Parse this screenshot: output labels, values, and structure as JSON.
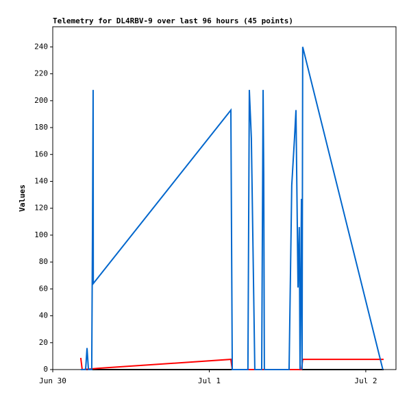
{
  "chart_data": {
    "type": "line",
    "title": "Telemetry for DL4RBV-9 over last 96 hours (45 points)",
    "y_label": "Values",
    "xlim": [
      0,
      2.193
    ],
    "ylim": [
      0,
      255
    ],
    "xticks": [
      {
        "value": 0,
        "label": "Jun 30"
      },
      {
        "value": 1,
        "label": "Jul 1"
      },
      {
        "value": 2,
        "label": "Jul 2"
      }
    ],
    "yticks": [
      0,
      20,
      40,
      60,
      80,
      100,
      120,
      140,
      160,
      180,
      200,
      220,
      240
    ],
    "series": [
      {
        "color": "#000000",
        "x": [
          0.188,
          2.114
        ],
        "values": [
          0,
          0
        ]
      },
      {
        "color": "#ff0000",
        "x": [
          0.179,
          0.188,
          0.298,
          1.138,
          1.147,
          1.589,
          1.597,
          2.114
        ],
        "values": [
          8.7,
          0,
          1,
          7.6,
          0,
          0,
          7.6,
          7.6
        ]
      },
      {
        "color": "#0066cc",
        "x": [
          0.179,
          0.21,
          0.219,
          0.228,
          0.249,
          0.254,
          0.258,
          0.259,
          1.138,
          1.147,
          1.247,
          1.256,
          1.269,
          1.291,
          1.335,
          1.344,
          1.348,
          1.352,
          1.51,
          1.527,
          1.545,
          1.554,
          1.567,
          1.575,
          1.58,
          1.589,
          1.593,
          1.597,
          2.109
        ],
        "values": [
          0,
          0,
          16,
          0,
          0,
          104,
          208,
          64,
          193,
          0,
          0,
          208,
          172,
          0,
          0,
          208,
          145,
          0,
          0,
          137,
          173,
          193,
          61,
          106,
          0,
          127,
          0,
          240,
          0
        ]
      }
    ]
  }
}
